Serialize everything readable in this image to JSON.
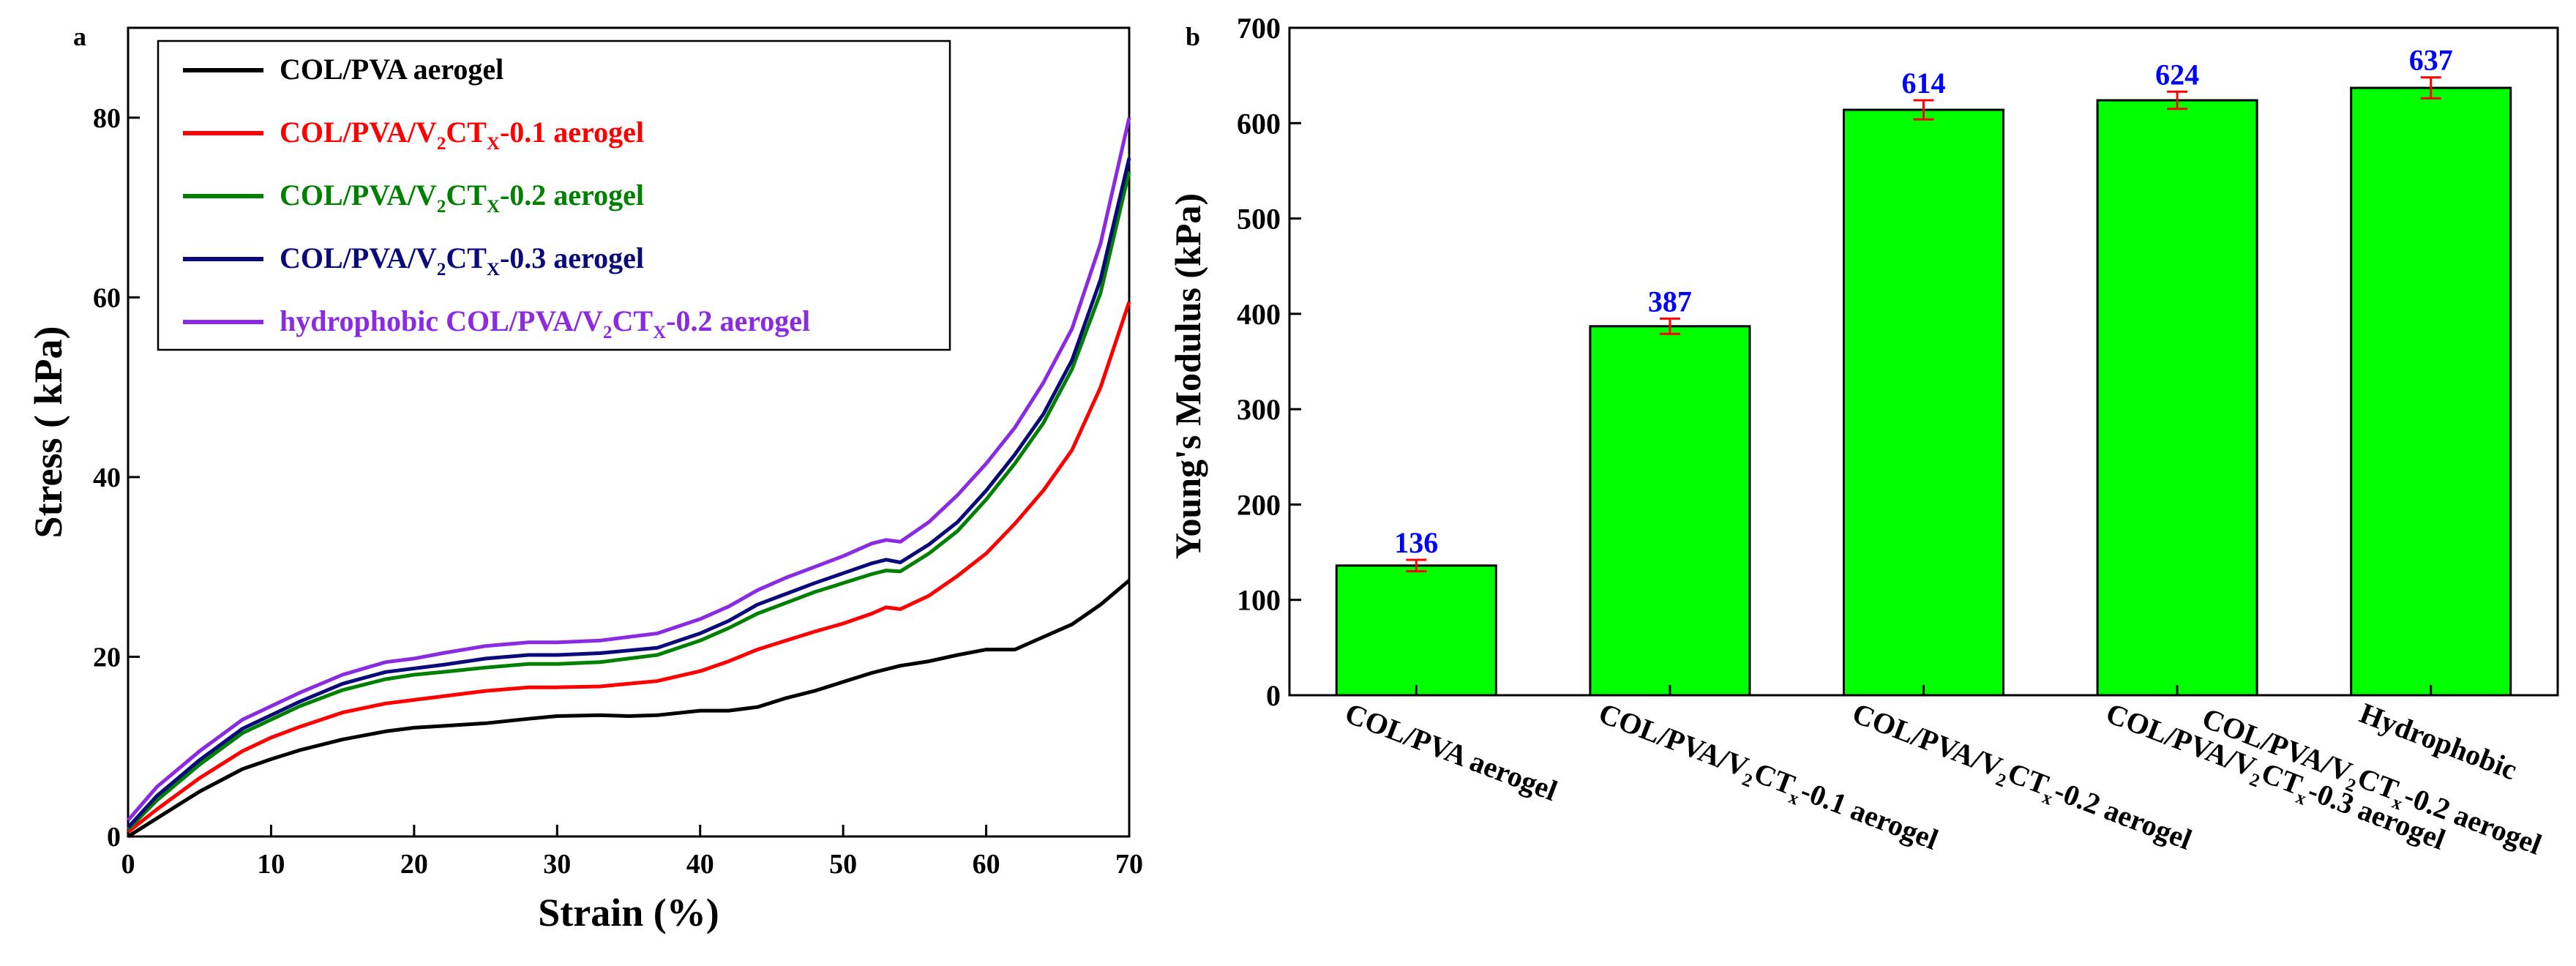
{
  "chart_data": [
    {
      "panel": "a",
      "type": "line",
      "xlabel": "Strain (%)",
      "ylabel": "Stress ( kPa)",
      "xlim": [
        0,
        70
      ],
      "ylim": [
        0,
        90
      ],
      "xticks": [
        0,
        10,
        20,
        30,
        40,
        50,
        60,
        70
      ],
      "yticks": [
        0,
        20,
        40,
        60,
        80
      ],
      "legend_position": "top-left",
      "series": [
        {
          "name": "COL/PVA aerogel",
          "legend": [
            {
              "t": "COL/PVA aerogel"
            }
          ],
          "color": "#000000",
          "points": [
            [
              0,
              0
            ],
            [
              2,
              2
            ],
            [
              5,
              5
            ],
            [
              8,
              7.5
            ],
            [
              10,
              8.6
            ],
            [
              12,
              9.6
            ],
            [
              15,
              10.8
            ],
            [
              18,
              11.7
            ],
            [
              20,
              12.1
            ],
            [
              22,
              12.3
            ],
            [
              25,
              12.6
            ],
            [
              28,
              13.1
            ],
            [
              30,
              13.4
            ],
            [
              33,
              13.5
            ],
            [
              35,
              13.4
            ],
            [
              37,
              13.5
            ],
            [
              40,
              14.0
            ],
            [
              42,
              14.0
            ],
            [
              44,
              14.4
            ],
            [
              46,
              15.4
            ],
            [
              48,
              16.2
            ],
            [
              50,
              17.2
            ],
            [
              52,
              18.2
            ],
            [
              54,
              19.0
            ],
            [
              56,
              19.5
            ],
            [
              58,
              20.2
            ],
            [
              60,
              20.8
            ],
            [
              62,
              20.8
            ],
            [
              64,
              22.2
            ],
            [
              66,
              23.6
            ],
            [
              68,
              25.8
            ],
            [
              70,
              28.5
            ]
          ]
        },
        {
          "name": "COL/PVA/V2CTX-0.1 aerogel",
          "legend": [
            {
              "t": "COL/PVA/V"
            },
            {
              "t": "2",
              "sub": true
            },
            {
              "t": "CT"
            },
            {
              "t": "X",
              "sub": true
            },
            {
              "t": "-0.1 aerogel"
            }
          ],
          "color": "#ff0000",
          "points": [
            [
              0,
              0.5
            ],
            [
              2,
              3
            ],
            [
              5,
              6.5
            ],
            [
              8,
              9.5
            ],
            [
              10,
              11
            ],
            [
              12,
              12.2
            ],
            [
              15,
              13.8
            ],
            [
              18,
              14.8
            ],
            [
              20,
              15.2
            ],
            [
              22,
              15.6
            ],
            [
              25,
              16.2
            ],
            [
              28,
              16.6
            ],
            [
              30,
              16.6
            ],
            [
              33,
              16.7
            ],
            [
              35,
              17.0
            ],
            [
              37,
              17.3
            ],
            [
              40,
              18.4
            ],
            [
              42,
              19.5
            ],
            [
              44,
              20.8
            ],
            [
              46,
              21.8
            ],
            [
              48,
              22.8
            ],
            [
              50,
              23.7
            ],
            [
              52,
              24.8
            ],
            [
              53,
              25.5
            ],
            [
              54,
              25.3
            ],
            [
              56,
              26.8
            ],
            [
              58,
              29
            ],
            [
              60,
              31.5
            ],
            [
              62,
              34.8
            ],
            [
              64,
              38.5
            ],
            [
              66,
              43
            ],
            [
              68,
              50
            ],
            [
              70,
              59.5
            ]
          ]
        },
        {
          "name": "COL/PVA/V2CTX-0.2 aerogel",
          "legend": [
            {
              "t": "COL/PVA/V"
            },
            {
              "t": "2",
              "sub": true
            },
            {
              "t": "CT"
            },
            {
              "t": "X",
              "sub": true
            },
            {
              "t": "-0.2 aerogel"
            }
          ],
          "color": "#008000",
          "points": [
            [
              0,
              0.8
            ],
            [
              2,
              4
            ],
            [
              5,
              8
            ],
            [
              8,
              11.5
            ],
            [
              10,
              13
            ],
            [
              12,
              14.5
            ],
            [
              15,
              16.3
            ],
            [
              18,
              17.5
            ],
            [
              20,
              18
            ],
            [
              22,
              18.3
            ],
            [
              25,
              18.8
            ],
            [
              28,
              19.2
            ],
            [
              30,
              19.2
            ],
            [
              33,
              19.4
            ],
            [
              35,
              19.8
            ],
            [
              37,
              20.2
            ],
            [
              40,
              21.8
            ],
            [
              42,
              23.2
            ],
            [
              44,
              24.8
            ],
            [
              46,
              26.0
            ],
            [
              48,
              27.2
            ],
            [
              50,
              28.2
            ],
            [
              52,
              29.2
            ],
            [
              53,
              29.6
            ],
            [
              54,
              29.5
            ],
            [
              56,
              31.5
            ],
            [
              58,
              34
            ],
            [
              60,
              37.5
            ],
            [
              62,
              41.5
            ],
            [
              64,
              46
            ],
            [
              66,
              52
            ],
            [
              68,
              60.5
            ],
            [
              70,
              74
            ]
          ]
        },
        {
          "name": "COL/PVA/V2CTX-0.3 aerogel",
          "legend": [
            {
              "t": "COL/PVA/V"
            },
            {
              "t": "2",
              "sub": true
            },
            {
              "t": "CT"
            },
            {
              "t": "X",
              "sub": true
            },
            {
              "t": "-0.3 aerogel"
            }
          ],
          "color": "#0a0a7a",
          "points": [
            [
              0,
              1
            ],
            [
              2,
              4.5
            ],
            [
              5,
              8.5
            ],
            [
              8,
              12
            ],
            [
              10,
              13.5
            ],
            [
              12,
              15
            ],
            [
              15,
              17
            ],
            [
              18,
              18.3
            ],
            [
              20,
              18.7
            ],
            [
              22,
              19.1
            ],
            [
              25,
              19.8
            ],
            [
              28,
              20.2
            ],
            [
              30,
              20.2
            ],
            [
              33,
              20.4
            ],
            [
              35,
              20.7
            ],
            [
              37,
              21.0
            ],
            [
              40,
              22.6
            ],
            [
              42,
              24.0
            ],
            [
              44,
              25.8
            ],
            [
              46,
              27.0
            ],
            [
              48,
              28.2
            ],
            [
              50,
              29.3
            ],
            [
              52,
              30.4
            ],
            [
              53,
              30.8
            ],
            [
              54,
              30.5
            ],
            [
              56,
              32.5
            ],
            [
              58,
              35
            ],
            [
              60,
              38.5
            ],
            [
              62,
              42.5
            ],
            [
              64,
              47
            ],
            [
              66,
              53
            ],
            [
              68,
              62
            ],
            [
              70,
              75.5
            ]
          ]
        },
        {
          "name": "hydrophobic COL/PVA/V2CTX-0.2 aerogel",
          "legend": [
            {
              "t": "hydrophobic COL/PVA/V"
            },
            {
              "t": "2",
              "sub": true
            },
            {
              "t": "CT"
            },
            {
              "t": "X",
              "sub": true
            },
            {
              "t": "-0.2 aerogel"
            }
          ],
          "color": "#8a2be2",
          "points": [
            [
              0,
              1.8
            ],
            [
              2,
              5.5
            ],
            [
              5,
              9.5
            ],
            [
              8,
              13
            ],
            [
              10,
              14.5
            ],
            [
              12,
              16
            ],
            [
              15,
              18
            ],
            [
              18,
              19.4
            ],
            [
              20,
              19.8
            ],
            [
              22,
              20.4
            ],
            [
              25,
              21.2
            ],
            [
              28,
              21.6
            ],
            [
              30,
              21.6
            ],
            [
              33,
              21.8
            ],
            [
              35,
              22.2
            ],
            [
              37,
              22.6
            ],
            [
              40,
              24.2
            ],
            [
              42,
              25.6
            ],
            [
              44,
              27.4
            ],
            [
              46,
              28.8
            ],
            [
              48,
              30.0
            ],
            [
              50,
              31.2
            ],
            [
              52,
              32.6
            ],
            [
              53,
              33.0
            ],
            [
              54,
              32.8
            ],
            [
              56,
              35
            ],
            [
              58,
              38
            ],
            [
              60,
              41.5
            ],
            [
              62,
              45.5
            ],
            [
              64,
              50.5
            ],
            [
              66,
              56.5
            ],
            [
              68,
              66
            ],
            [
              70,
              80
            ]
          ]
        }
      ]
    },
    {
      "panel": "b",
      "type": "bar",
      "ylabel": "Young's Modulus (kPa)",
      "ylim": [
        0,
        700
      ],
      "yticks": [
        0,
        100,
        200,
        300,
        400,
        500,
        600,
        700
      ],
      "bar_color": "#00ff00",
      "error_color": "#ff0000",
      "value_label_color": "#0000ff",
      "categories": [
        [
          {
            "t": "COL/PVA aerogel"
          }
        ],
        [
          {
            "t": "COL/PVA/V"
          },
          {
            "t": "2",
            "sub": true
          },
          {
            "t": "CT"
          },
          {
            "t": "x",
            "sub": true
          },
          {
            "t": "-0.1 aerogel"
          }
        ],
        [
          {
            "t": "COL/PVA/V"
          },
          {
            "t": "2",
            "sub": true
          },
          {
            "t": "CT"
          },
          {
            "t": "x",
            "sub": true
          },
          {
            "t": "-0.2 aerogel"
          }
        ],
        [
          {
            "t": "COL/PVA/V"
          },
          {
            "t": "2",
            "sub": true
          },
          {
            "t": "CT"
          },
          {
            "t": "x",
            "sub": true
          },
          {
            "t": "-0.3 aerogel"
          }
        ],
        [
          {
            "t": "Hydrophobic"
          }
        ]
      ],
      "category_extra_line": [
        null,
        null,
        null,
        null,
        [
          {
            "t": "COL/PVA/V"
          },
          {
            "t": "2",
            "sub": true
          },
          {
            "t": "CT"
          },
          {
            "t": "x",
            "sub": true
          },
          {
            "t": "-0.2 aerogel"
          }
        ]
      ],
      "values": [
        136,
        387,
        614,
        624,
        637
      ],
      "errors": [
        6,
        8,
        10,
        9,
        11
      ],
      "value_labels": [
        "136",
        "387",
        "614",
        "624",
        "637"
      ]
    }
  ],
  "panel_labels": {
    "a": "a",
    "b": "b"
  }
}
